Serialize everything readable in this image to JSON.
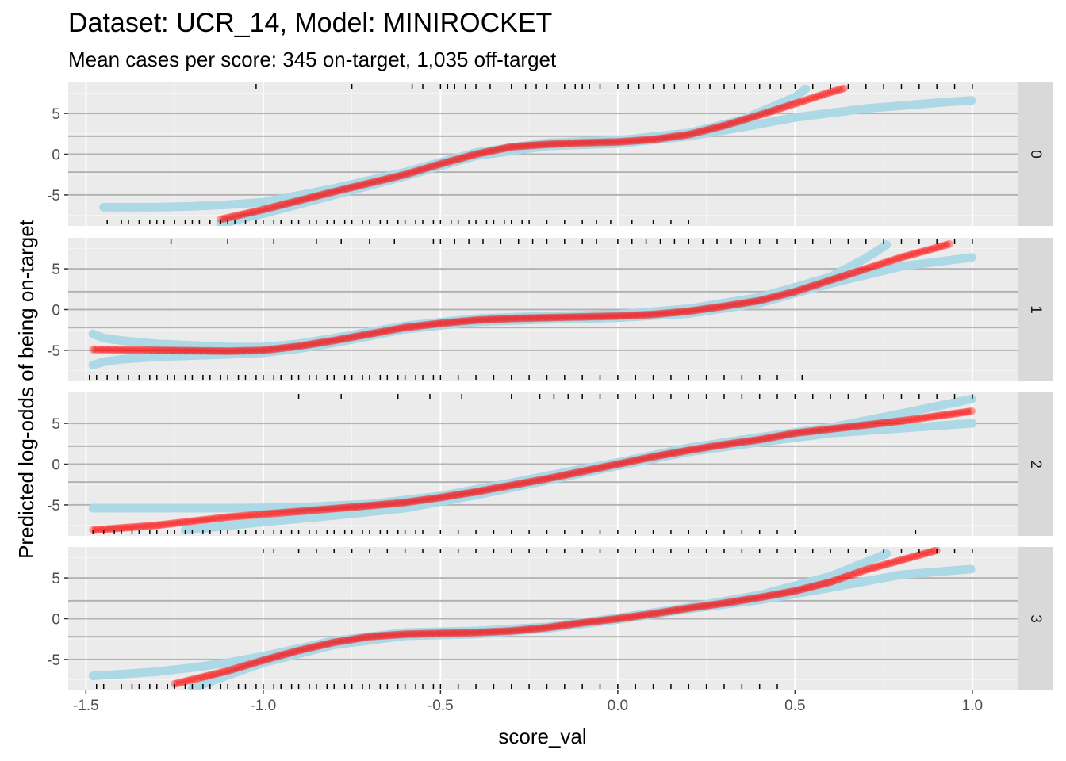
{
  "chart_data": {
    "type": "scatter",
    "title": "Dataset: UCR_14, Model: MINIROCKET",
    "subtitle": "Mean cases per score: 345 on-target, 1,035 off-target",
    "xlabel": "score_val",
    "ylabel": "Predicted log-odds of being on-target",
    "xlim": [
      -1.55,
      1.13
    ],
    "ylim": [
      -8.8,
      8.8
    ],
    "x_ticks": [
      -1.5,
      -1.0,
      -0.5,
      0.0,
      0.5,
      1.0
    ],
    "x_tick_labels": [
      "-1.5",
      "-1.0",
      "-0.5",
      "0.0",
      "0.5",
      "1.0"
    ],
    "y_ticks": [
      5,
      0,
      -5
    ],
    "y_tick_labels": [
      "5",
      "0",
      "-5"
    ],
    "reference_lines_y": [
      5,
      2.2,
      0,
      -2.2,
      -5
    ],
    "grid": true,
    "colors": {
      "prediction": "#ff0000",
      "interval": "#add8e6",
      "rug": "#000000",
      "panel": "#ebebeb",
      "strip": "#d9d9d9"
    },
    "facets": [
      {
        "label": "0",
        "prediction": {
          "x": [
            -1.12,
            -1.0,
            -0.8,
            -0.6,
            -0.5,
            -0.4,
            -0.3,
            -0.2,
            -0.1,
            0.0,
            0.1,
            0.2,
            0.3,
            0.4,
            0.5,
            0.6,
            0.64
          ],
          "y": [
            -8.0,
            -6.8,
            -4.6,
            -2.5,
            -1.2,
            0.0,
            0.9,
            1.2,
            1.4,
            1.5,
            1.8,
            2.4,
            3.5,
            4.8,
            6.2,
            7.6,
            8.1
          ]
        },
        "lower": {
          "x": [
            -1.12,
            -1.0,
            -0.8,
            -0.6,
            -0.4,
            -0.2,
            0.0,
            0.2,
            0.35,
            0.5,
            0.7,
            0.9,
            1.0
          ],
          "y": [
            -8.5,
            -7.3,
            -5.0,
            -2.7,
            -0.2,
            1.0,
            1.3,
            2.2,
            3.3,
            4.5,
            5.6,
            6.3,
            6.6
          ]
        },
        "upper": {
          "x": [
            -1.45,
            -1.3,
            -1.2,
            -1.1,
            -1.0,
            -0.8,
            -0.6,
            -0.4,
            -0.2,
            0.0,
            0.2,
            0.35,
            0.5,
            0.53
          ],
          "y": [
            -6.5,
            -6.5,
            -6.4,
            -6.2,
            -5.9,
            -4.2,
            -2.2,
            0.2,
            1.4,
            1.7,
            2.6,
            4.2,
            7.0,
            8.0
          ]
        },
        "rug_top": [
          -1.02,
          -0.75,
          -0.58,
          -0.55,
          -0.5,
          -0.48,
          -0.46,
          -0.43,
          -0.4,
          -0.36,
          -0.3,
          -0.26,
          -0.23,
          -0.2,
          -0.15,
          -0.12,
          -0.1,
          -0.08,
          -0.05,
          0.0,
          0.03,
          0.06,
          0.1,
          0.13,
          0.16,
          0.2,
          0.23,
          0.26,
          0.3,
          0.33,
          0.36,
          0.4,
          0.43,
          0.46,
          0.5,
          0.55,
          0.6,
          0.65,
          0.7,
          0.75,
          0.8,
          0.85,
          0.9,
          0.95,
          1.0
        ],
        "rug_bottom": [
          -1.44,
          -1.4,
          -1.38,
          -1.35,
          -1.32,
          -1.3,
          -1.28,
          -1.25,
          -1.22,
          -1.2,
          -1.18,
          -1.15,
          -1.12,
          -1.1,
          -1.08,
          -1.05,
          -1.02,
          -1.0,
          -0.97,
          -0.95,
          -0.92,
          -0.9,
          -0.87,
          -0.85,
          -0.82,
          -0.8,
          -0.77,
          -0.75,
          -0.72,
          -0.7,
          -0.67,
          -0.65,
          -0.62,
          -0.6,
          -0.57,
          -0.55,
          -0.52,
          -0.5,
          -0.47,
          -0.45,
          -0.42,
          -0.4,
          -0.37,
          -0.35,
          -0.32,
          -0.3,
          -0.27,
          -0.25,
          -0.2,
          -0.15,
          -0.1,
          -0.06,
          -0.02,
          0.04,
          0.1,
          0.15,
          0.2
        ]
      },
      {
        "label": "1",
        "prediction": {
          "x": [
            -1.48,
            -1.3,
            -1.1,
            -1.0,
            -0.9,
            -0.8,
            -0.7,
            -0.6,
            -0.5,
            -0.4,
            -0.3,
            -0.2,
            -0.1,
            0.0,
            0.1,
            0.2,
            0.3,
            0.4,
            0.5,
            0.6,
            0.7,
            0.8,
            0.9,
            0.94
          ],
          "y": [
            -4.9,
            -5.0,
            -5.1,
            -5.0,
            -4.5,
            -3.8,
            -3.0,
            -2.2,
            -1.7,
            -1.3,
            -1.1,
            -1.0,
            -0.9,
            -0.8,
            -0.6,
            -0.2,
            0.4,
            1.1,
            2.2,
            3.6,
            5.0,
            6.4,
            7.6,
            8.1
          ]
        },
        "lower": {
          "x": [
            -1.48,
            -1.45,
            -1.4,
            -1.3,
            -1.1,
            -1.0,
            -0.9,
            -0.8,
            -0.6,
            -0.4,
            -0.2,
            0.0,
            0.2,
            0.4,
            0.6,
            0.8,
            1.0
          ],
          "y": [
            -6.8,
            -6.4,
            -6.1,
            -5.8,
            -5.5,
            -5.3,
            -4.8,
            -4.1,
            -2.4,
            -1.5,
            -1.2,
            -1.0,
            -0.5,
            0.8,
            3.2,
            5.3,
            6.4
          ]
        },
        "upper": {
          "x": [
            -1.48,
            -1.45,
            -1.4,
            -1.3,
            -1.1,
            -1.0,
            -0.9,
            -0.8,
            -0.6,
            -0.4,
            -0.2,
            0.0,
            0.2,
            0.4,
            0.6,
            0.7,
            0.76
          ],
          "y": [
            -3.0,
            -3.5,
            -3.8,
            -4.2,
            -4.6,
            -4.6,
            -4.2,
            -3.5,
            -2.0,
            -1.1,
            -0.8,
            -0.6,
            0.1,
            1.5,
            4.0,
            6.3,
            8.0
          ]
        },
        "rug_top": [
          -1.26,
          -1.1,
          -0.97,
          -0.85,
          -0.78,
          -0.7,
          -0.63,
          -0.52,
          -0.5,
          -0.46,
          -0.42,
          -0.38,
          -0.33,
          -0.28,
          -0.24,
          -0.2,
          -0.15,
          -0.1,
          -0.06,
          0.0,
          0.04,
          0.08,
          0.12,
          0.16,
          0.2,
          0.24,
          0.28,
          0.32,
          0.36,
          0.4,
          0.45,
          0.5,
          0.55,
          0.6,
          0.65,
          0.7,
          0.75,
          0.8,
          0.85,
          0.9,
          0.95,
          1.0
        ],
        "rug_bottom": [
          -1.49,
          -1.47,
          -1.44,
          -1.41,
          -1.38,
          -1.35,
          -1.32,
          -1.3,
          -1.27,
          -1.25,
          -1.22,
          -1.2,
          -1.17,
          -1.15,
          -1.12,
          -1.1,
          -1.07,
          -1.05,
          -1.02,
          -1.0,
          -0.97,
          -0.95,
          -0.92,
          -0.9,
          -0.87,
          -0.85,
          -0.82,
          -0.8,
          -0.77,
          -0.75,
          -0.72,
          -0.7,
          -0.67,
          -0.65,
          -0.62,
          -0.6,
          -0.57,
          -0.55,
          -0.52,
          -0.5,
          -0.45,
          -0.4,
          -0.35,
          -0.3,
          -0.25,
          -0.2,
          -0.15,
          -0.1,
          -0.05,
          0.0,
          0.05,
          0.1,
          0.15,
          0.2,
          0.25,
          0.3,
          0.35,
          0.4,
          0.45,
          0.52
        ]
      },
      {
        "label": "2",
        "prediction": {
          "x": [
            -1.48,
            -1.3,
            -1.1,
            -0.9,
            -0.7,
            -0.6,
            -0.5,
            -0.4,
            -0.3,
            -0.2,
            -0.1,
            0.0,
            0.1,
            0.2,
            0.3,
            0.4,
            0.5,
            0.6,
            0.7,
            0.8,
            0.9,
            1.0
          ],
          "y": [
            -8.1,
            -7.5,
            -6.5,
            -5.8,
            -5.1,
            -4.7,
            -4.1,
            -3.4,
            -2.6,
            -1.8,
            -0.9,
            0.0,
            0.9,
            1.7,
            2.4,
            3.0,
            3.8,
            4.3,
            4.8,
            5.3,
            5.9,
            6.5
          ]
        },
        "lower": {
          "x": [
            -1.22,
            -1.0,
            -0.8,
            -0.6,
            -0.4,
            -0.2,
            0.0,
            0.2,
            0.4,
            0.6,
            0.8,
            1.0
          ],
          "y": [
            -8.1,
            -7.1,
            -6.3,
            -5.4,
            -3.8,
            -2.0,
            -0.2,
            1.5,
            2.7,
            3.8,
            4.4,
            5.0
          ]
        },
        "upper": {
          "x": [
            -1.48,
            -1.3,
            -1.1,
            -0.9,
            -0.7,
            -0.5,
            -0.3,
            -0.1,
            0.0,
            0.2,
            0.4,
            0.6,
            0.8,
            1.0
          ],
          "y": [
            -5.4,
            -5.4,
            -5.4,
            -5.3,
            -4.9,
            -3.9,
            -2.3,
            -0.6,
            0.2,
            2.0,
            3.3,
            4.5,
            6.2,
            8.0
          ]
        },
        "rug_top": [
          -0.9,
          -0.78,
          -0.62,
          -0.53,
          -0.44,
          -0.3,
          -0.22,
          -0.18,
          -0.14,
          -0.1,
          -0.05,
          0.0,
          0.05,
          0.1,
          0.15,
          0.2,
          0.25,
          0.3,
          0.35,
          0.4,
          0.45,
          0.5,
          0.55,
          0.6,
          0.65,
          0.7,
          0.75,
          0.8,
          0.85,
          0.9,
          0.95,
          1.0
        ],
        "rug_bottom": [
          -1.48,
          -1.45,
          -1.42,
          -1.4,
          -1.37,
          -1.35,
          -1.32,
          -1.3,
          -1.27,
          -1.25,
          -1.22,
          -1.2,
          -1.17,
          -1.15,
          -1.12,
          -1.1,
          -1.07,
          -1.05,
          -1.02,
          -1.0,
          -0.97,
          -0.95,
          -0.92,
          -0.9,
          -0.87,
          -0.85,
          -0.82,
          -0.8,
          -0.77,
          -0.75,
          -0.72,
          -0.7,
          -0.67,
          -0.65,
          -0.62,
          -0.6,
          -0.57,
          -0.55,
          -0.5,
          -0.45,
          -0.4,
          -0.35,
          -0.3,
          -0.25,
          -0.2,
          -0.15,
          -0.1,
          -0.05,
          0.0,
          0.05,
          0.1,
          0.15,
          0.2,
          0.25,
          0.3,
          0.35,
          0.4,
          0.45,
          0.5,
          0.84
        ]
      },
      {
        "label": "3",
        "prediction": {
          "x": [
            -1.25,
            -1.1,
            -1.0,
            -0.9,
            -0.8,
            -0.7,
            -0.6,
            -0.5,
            -0.4,
            -0.3,
            -0.2,
            -0.1,
            0.0,
            0.1,
            0.2,
            0.3,
            0.4,
            0.5,
            0.6,
            0.7,
            0.8,
            0.9
          ],
          "y": [
            -8.0,
            -6.4,
            -5.1,
            -3.9,
            -2.9,
            -2.2,
            -1.9,
            -1.8,
            -1.7,
            -1.5,
            -1.1,
            -0.5,
            0.0,
            0.6,
            1.3,
            1.9,
            2.6,
            3.4,
            4.5,
            6.0,
            7.2,
            8.4
          ]
        },
        "lower": {
          "x": [
            -1.2,
            -1.0,
            -0.8,
            -0.6,
            -0.4,
            -0.2,
            0.0,
            0.2,
            0.4,
            0.6,
            0.8,
            1.0
          ],
          "y": [
            -8.5,
            -5.4,
            -3.2,
            -2.1,
            -1.9,
            -1.2,
            -0.1,
            1.2,
            2.3,
            3.8,
            5.4,
            6.1
          ]
        },
        "upper": {
          "x": [
            -1.48,
            -1.4,
            -1.3,
            -1.2,
            -1.1,
            -1.0,
            -0.8,
            -0.6,
            -0.4,
            -0.2,
            0.0,
            0.2,
            0.4,
            0.6,
            0.76
          ],
          "y": [
            -7.0,
            -6.8,
            -6.5,
            -6.0,
            -5.4,
            -4.6,
            -2.7,
            -1.7,
            -1.5,
            -1.0,
            0.1,
            1.4,
            2.9,
            5.2,
            8.0
          ]
        },
        "rug_top": [
          -1.0,
          -0.97,
          -0.9,
          -0.85,
          -0.8,
          -0.75,
          -0.7,
          -0.65,
          -0.6,
          -0.55,
          -0.5,
          -0.45,
          -0.4,
          -0.35,
          -0.3,
          -0.25,
          -0.2,
          -0.15,
          -0.1,
          -0.05,
          0.0,
          0.05,
          0.1,
          0.15,
          0.2,
          0.25,
          0.3,
          0.35,
          0.4,
          0.45,
          0.5,
          0.55,
          0.6,
          0.65,
          0.7,
          0.75,
          0.8,
          0.85,
          0.9,
          0.95,
          1.0
        ],
        "rug_bottom": [
          -1.47,
          -1.45,
          -1.4,
          -1.37,
          -1.35,
          -1.32,
          -1.3,
          -1.27,
          -1.25,
          -1.22,
          -1.2,
          -1.17,
          -1.15,
          -1.12,
          -1.1,
          -1.07,
          -1.05,
          -1.02,
          -1.0,
          -0.97,
          -0.95,
          -0.92,
          -0.9,
          -0.87,
          -0.85,
          -0.82,
          -0.8,
          -0.77,
          -0.75,
          -0.72,
          -0.7,
          -0.67,
          -0.65,
          -0.62,
          -0.6,
          -0.57,
          -0.55,
          -0.52,
          -0.5,
          -0.45,
          -0.4,
          -0.35,
          -0.3,
          -0.25,
          -0.2,
          -0.15,
          -0.1,
          -0.05,
          0.0,
          0.05,
          0.1,
          0.15,
          0.2,
          0.25,
          0.3,
          0.35,
          0.4,
          0.45
        ]
      }
    ]
  }
}
